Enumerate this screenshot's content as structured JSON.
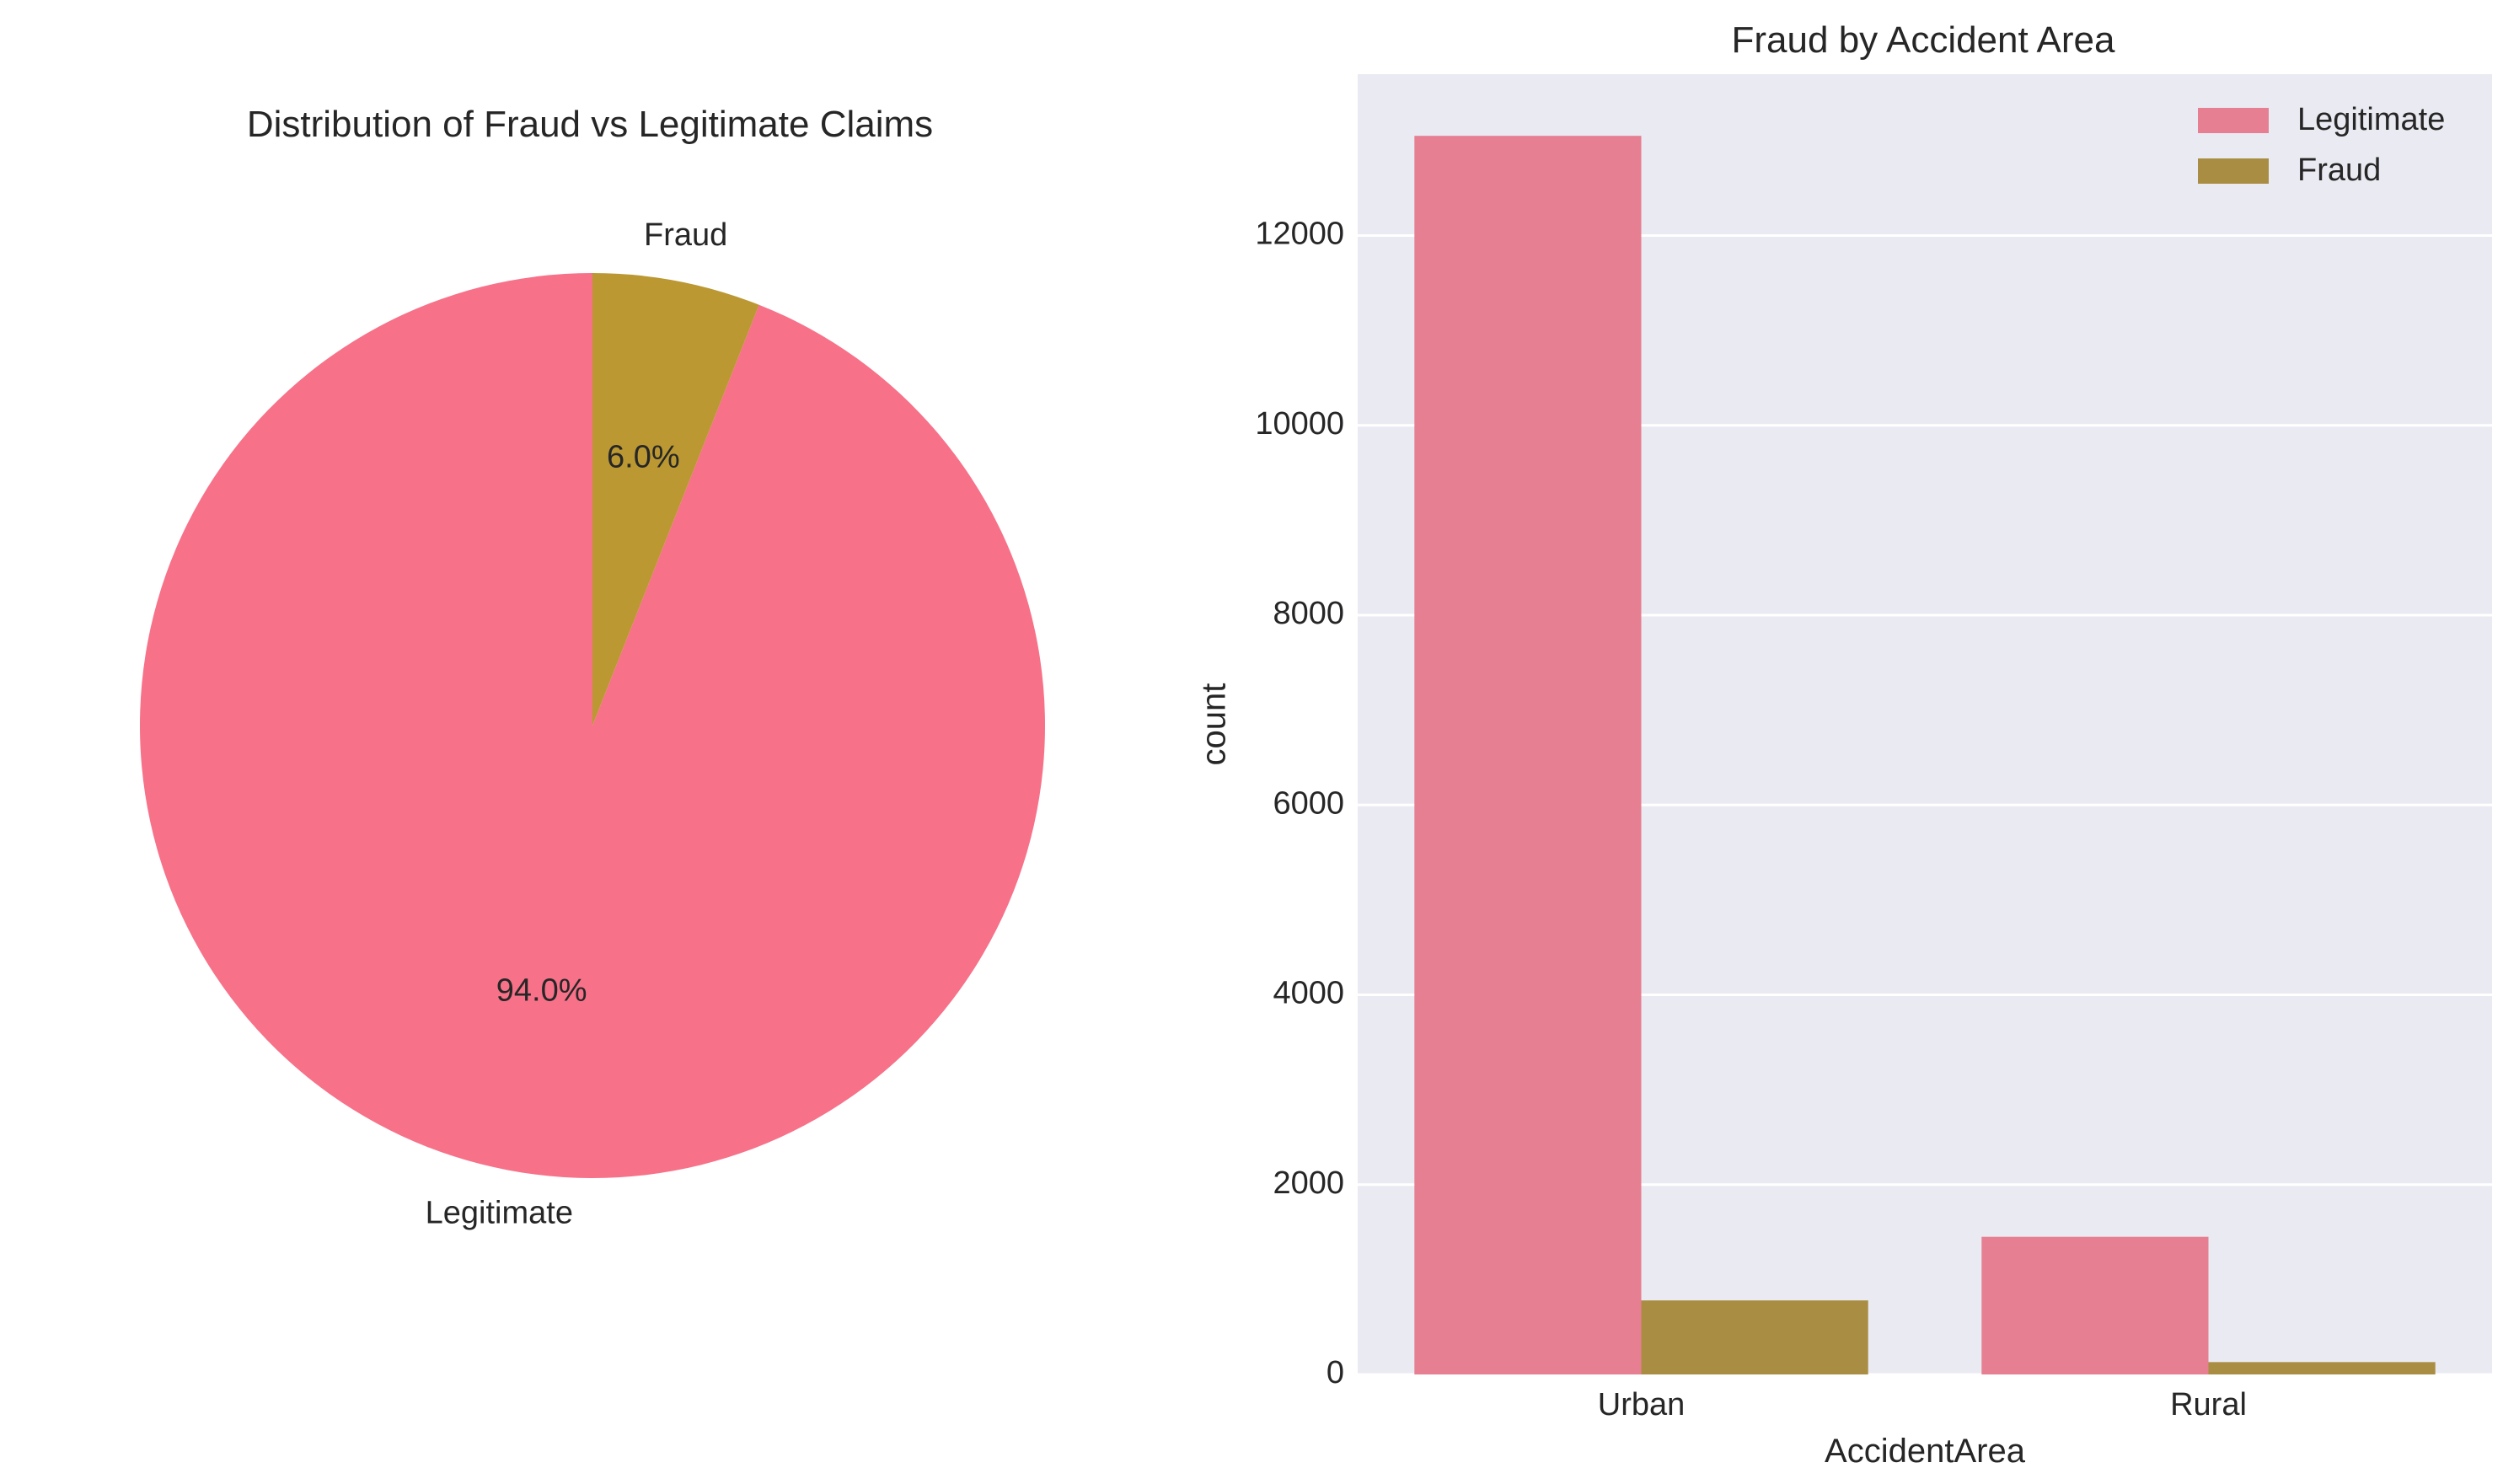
{
  "chart_data": [
    {
      "type": "pie",
      "title": "Distribution of Fraud vs Legitimate Claims",
      "slices": [
        {
          "label": "Legitimate",
          "value": 94.0,
          "pct_label": "94.0%",
          "color": "#f77189"
        },
        {
          "label": "Fraud",
          "value": 6.0,
          "pct_label": "6.0%",
          "color": "#bb9832"
        }
      ],
      "start_angle_deg": 90,
      "direction": "counterclockwise"
    },
    {
      "type": "bar",
      "title": "Fraud by Accident Area",
      "xlabel": "AccidentArea",
      "ylabel": "count",
      "categories": [
        "Urban",
        "Rural"
      ],
      "series": [
        {
          "name": "Legitimate",
          "values": [
            13050,
            1450
          ],
          "color": "#e67f91"
        },
        {
          "name": "Fraud",
          "values": [
            780,
            130
          ],
          "color": "#a98d42"
        }
      ],
      "ylim": [
        0,
        13700
      ],
      "yticks": [
        0,
        2000,
        4000,
        6000,
        8000,
        10000,
        12000
      ],
      "grid": true,
      "legend_position": "top-right",
      "background": "#eaeaf2"
    }
  ]
}
